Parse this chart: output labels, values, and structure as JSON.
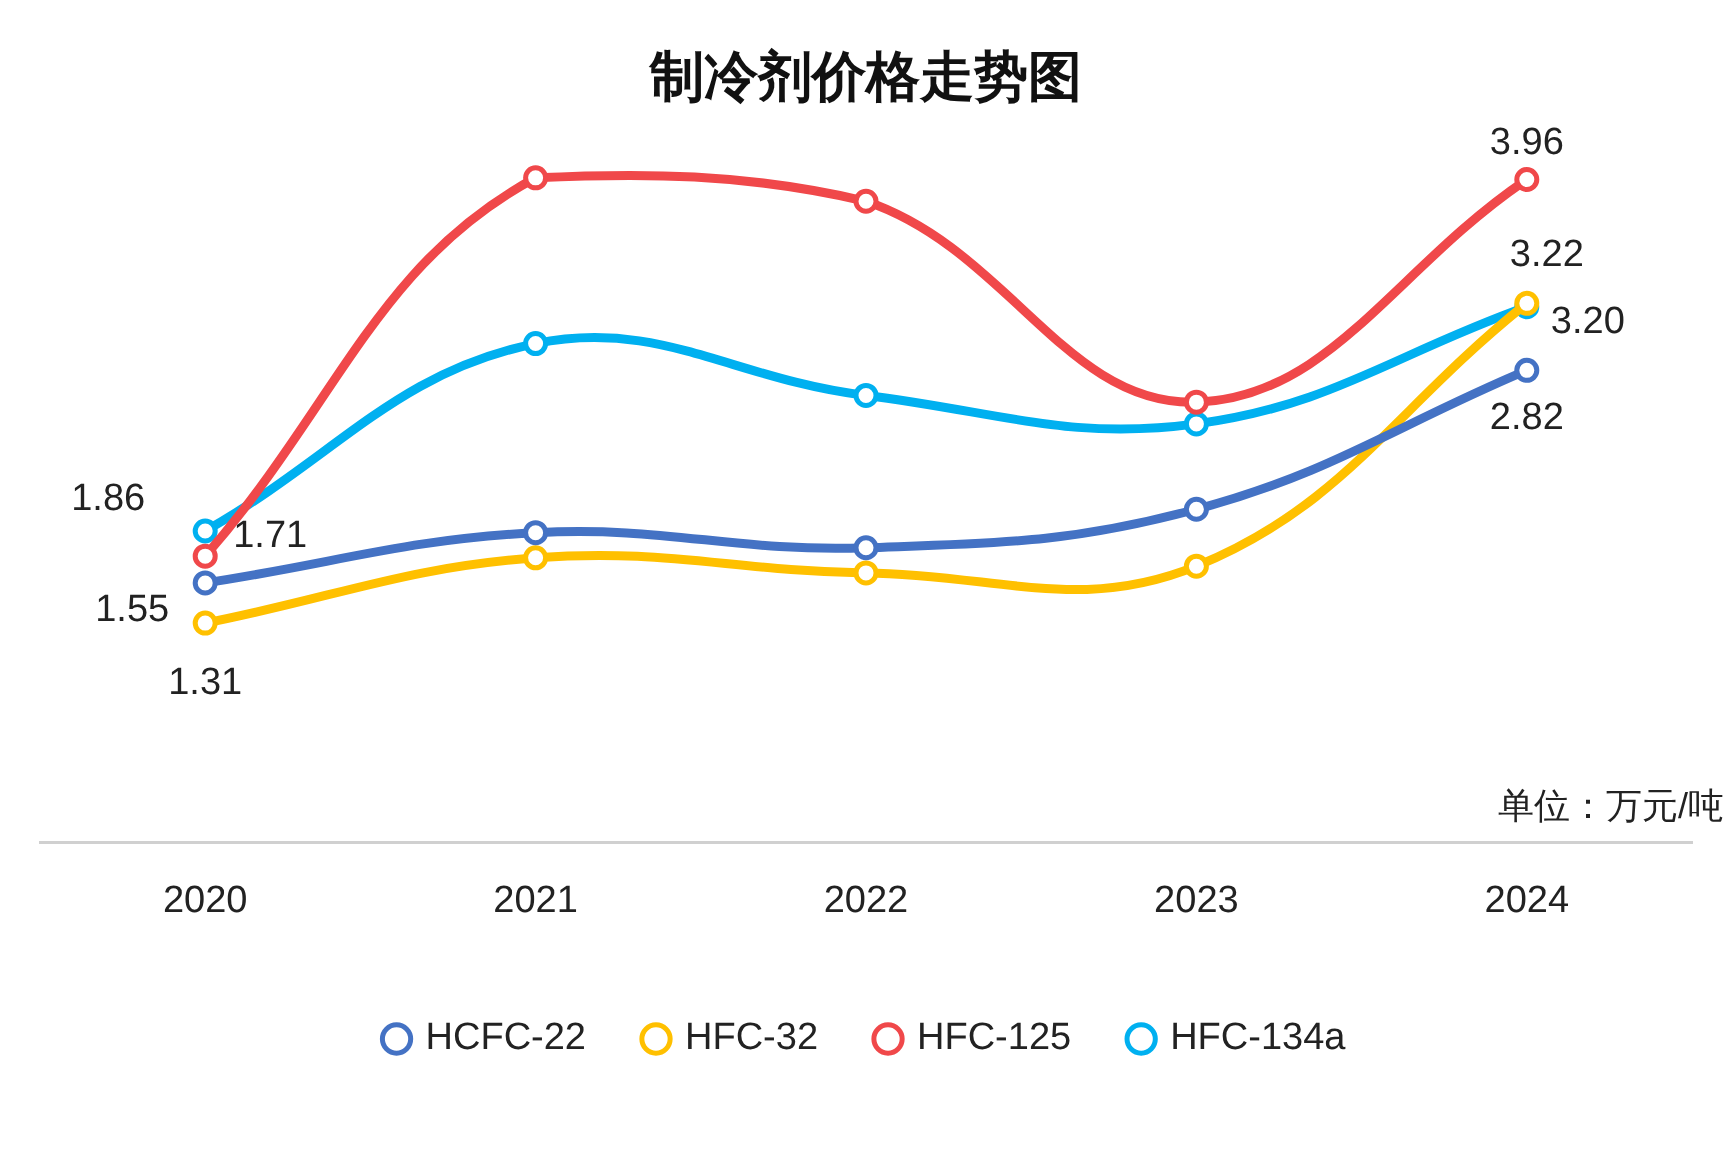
{
  "chart_data": {
    "type": "line",
    "title": "制冷剂价格走势图",
    "categories": [
      "2020",
      "2021",
      "2022",
      "2023",
      "2024"
    ],
    "series": [
      {
        "name": "HCFC-22",
        "color": "#4472c4",
        "values": [
          1.55,
          1.85,
          1.76,
          1.99,
          2.82
        ],
        "value_labels": [
          "1.55",
          null,
          null,
          null,
          "2.82"
        ]
      },
      {
        "name": "HFC-32",
        "color": "#ffc000",
        "values": [
          1.31,
          1.7,
          1.61,
          1.65,
          3.22
        ],
        "value_labels": [
          "1.31",
          null,
          null,
          null,
          "3.22"
        ]
      },
      {
        "name": "HFC-125",
        "color": "#f0484a",
        "values": [
          1.71,
          3.97,
          3.83,
          2.63,
          3.96
        ],
        "value_labels": [
          "1.71",
          null,
          null,
          null,
          "3.96"
        ]
      },
      {
        "name": "HFC-134a",
        "color": "#00b0f0",
        "values": [
          1.86,
          2.98,
          2.67,
          2.5,
          3.2
        ],
        "value_labels": [
          "1.86",
          null,
          null,
          null,
          "3.20"
        ]
      }
    ],
    "tick_labels": "x",
    "grid": false,
    "legend": "bottom",
    "marker": "circle",
    "line_style": "solid",
    "annotations": [
      "单位：万元/吨"
    ]
  }
}
